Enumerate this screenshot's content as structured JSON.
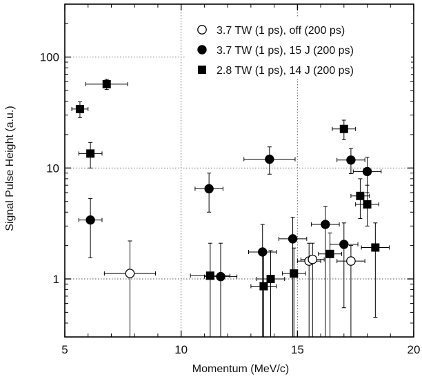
{
  "chart_data": {
    "type": "scatter",
    "xlabel": "Momentum (MeV/c)",
    "ylabel": "Signal Pulse Height (a.u.)",
    "xlim": [
      5,
      20
    ],
    "ylim": [
      0.3,
      300
    ],
    "yscale": "log",
    "grid": "dotted at major ticks",
    "legend_position": "top-right",
    "x_ticks": [
      5,
      10,
      15,
      20
    ],
    "x_tick_labels": [
      "5",
      "10",
      "15",
      "20"
    ],
    "y_ticks": [
      1,
      10,
      100
    ],
    "y_tick_labels": [
      "1",
      "10",
      "100"
    ],
    "series": [
      {
        "name": "3.7 TW (1 ps), off (200 ps)",
        "marker": "open-circle",
        "points": [
          {
            "x": 7.8,
            "y": 1.12,
            "xerr": 1.1,
            "ylo": 0.3,
            "yhi": 2.2
          },
          {
            "x": 15.5,
            "y": 1.45,
            "xerr": 0.5,
            "ylo": 0.3,
            "yhi": 2.1
          },
          {
            "x": 15.65,
            "y": 1.5,
            "xerr": 0.5,
            "ylo": 0.3,
            "yhi": 2.1
          },
          {
            "x": 17.3,
            "y": 1.45,
            "xerr": 0.6,
            "ylo": 0.3,
            "yhi": 2.0
          }
        ]
      },
      {
        "name": "3.7 TW (1 ps), 15 J (200 ps)",
        "marker": "filled-circle",
        "points": [
          {
            "x": 6.1,
            "y": 3.4,
            "xerr": 0.5,
            "ylo": 1.55,
            "yhi": 5.3
          },
          {
            "x": 11.2,
            "y": 6.5,
            "xerr": 0.6,
            "ylo": 4.0,
            "yhi": 9.0
          },
          {
            "x": 11.7,
            "y": 1.05,
            "xerr": 0.7,
            "ylo": 0.3,
            "yhi": 2.1
          },
          {
            "x": 13.5,
            "y": 1.75,
            "xerr": 0.6,
            "ylo": 0.3,
            "yhi": 3.1
          },
          {
            "x": 13.8,
            "y": 12.0,
            "xerr": 1.1,
            "ylo": 8.8,
            "yhi": 15.5
          },
          {
            "x": 14.8,
            "y": 2.3,
            "xerr": 0.6,
            "ylo": 0.3,
            "yhi": 3.6
          },
          {
            "x": 16.2,
            "y": 3.1,
            "xerr": 0.6,
            "ylo": 0.3,
            "yhi": 4.5
          },
          {
            "x": 17.0,
            "y": 2.05,
            "xerr": 0.6,
            "ylo": 0.55,
            "yhi": 3.2
          },
          {
            "x": 17.3,
            "y": 11.8,
            "xerr": 0.6,
            "ylo": 8.9,
            "yhi": 15.0
          },
          {
            "x": 18.0,
            "y": 9.3,
            "xerr": 0.6,
            "ylo": 6.0,
            "yhi": 12.5
          }
        ]
      },
      {
        "name": "2.8 TW (1 ps), 14 J (200 ps)",
        "marker": "filled-square",
        "points": [
          {
            "x": 5.65,
            "y": 34.0,
            "xerr": 0.35,
            "ylo": 28.5,
            "yhi": 39.5
          },
          {
            "x": 6.1,
            "y": 13.5,
            "xerr": 0.5,
            "ylo": 10.0,
            "yhi": 17.0
          },
          {
            "x": 6.8,
            "y": 57.0,
            "xerr": 0.9,
            "ylo": 51.0,
            "yhi": 63.0
          },
          {
            "x": 11.25,
            "y": 1.07,
            "xerr": 0.85,
            "ylo": 0.3,
            "yhi": 2.1
          },
          {
            "x": 13.55,
            "y": 0.86,
            "xerr": 0.55,
            "ylo": 0.3,
            "yhi": 1.7
          },
          {
            "x": 13.85,
            "y": 1.0,
            "xerr": 0.6,
            "ylo": 0.3,
            "yhi": 1.8
          },
          {
            "x": 14.85,
            "y": 1.12,
            "xerr": 0.5,
            "ylo": 0.3,
            "yhi": 1.9
          },
          {
            "x": 16.4,
            "y": 1.68,
            "xerr": 0.5,
            "ylo": 0.3,
            "yhi": 2.6
          },
          {
            "x": 17.0,
            "y": 22.5,
            "xerr": 0.5,
            "ylo": 18.0,
            "yhi": 27.0
          },
          {
            "x": 17.7,
            "y": 5.6,
            "xerr": 0.4,
            "ylo": 3.5,
            "yhi": 8.0
          },
          {
            "x": 18.0,
            "y": 4.7,
            "xerr": 0.5,
            "ylo": 3.0,
            "yhi": 7.0
          },
          {
            "x": 18.35,
            "y": 1.92,
            "xerr": 0.6,
            "ylo": 0.45,
            "yhi": 3.2
          }
        ]
      }
    ]
  }
}
